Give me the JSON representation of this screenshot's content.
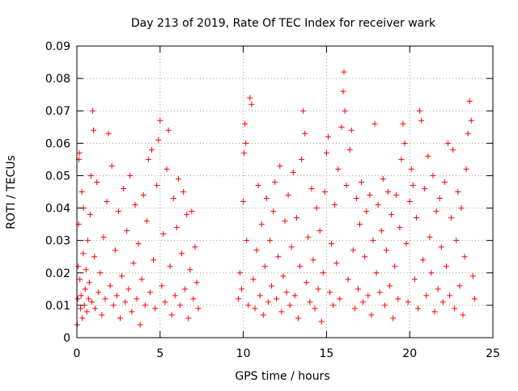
{
  "chart_data": {
    "type": "scatter",
    "title": "Day 213 of 2019, Rate Of TEC Index for receiver wark",
    "xlabel": "GPS time / hours",
    "ylabel": "ROTI / TECUs",
    "xlim": [
      0,
      25
    ],
    "ylim": [
      0,
      0.09
    ],
    "x_ticks": [
      0,
      5,
      10,
      15,
      20,
      25
    ],
    "x_tick_labels": [
      "0",
      "5",
      "10",
      "15",
      "20",
      "25"
    ],
    "y_ticks": [
      0,
      0.01,
      0.02,
      0.03,
      0.04,
      0.05,
      0.06,
      0.07,
      0.08,
      0.09
    ],
    "y_tick_labels": [
      "0",
      "0.01",
      "0.02",
      "0.03",
      "0.04",
      "0.05",
      "0.06",
      "0.07",
      "0.08",
      "0.09"
    ],
    "grid": true,
    "legend": "none",
    "marker": "plus",
    "color": "#ff0000",
    "data_gap": [
      7.4,
      9.6
    ],
    "series": [
      {
        "points": [
          [
            0.02,
            0.004
          ],
          [
            0.05,
            0.012
          ],
          [
            0.08,
            0.022
          ],
          [
            0.1,
            0.035
          ],
          [
            0.12,
            0.055
          ],
          [
            0.15,
            0.057
          ],
          [
            0.18,
            0.018
          ],
          [
            0.22,
            0.009
          ],
          [
            0.25,
            0.013
          ],
          [
            0.3,
            0.045
          ],
          [
            0.33,
            0.006
          ],
          [
            0.38,
            0.026
          ],
          [
            0.4,
            0.04
          ],
          [
            0.45,
            0.01
          ],
          [
            0.5,
            0.015
          ],
          [
            0.55,
            0.021
          ],
          [
            0.6,
            0.008
          ],
          [
            0.65,
            0.03
          ],
          [
            0.7,
            0.012
          ],
          [
            0.75,
            0.017
          ],
          [
            0.8,
            0.038
          ],
          [
            0.85,
            0.05
          ],
          [
            0.9,
            0.011
          ],
          [
            0.95,
            0.07
          ],
          [
            1.0,
            0.064
          ],
          [
            1.05,
            0.025
          ],
          [
            1.1,
            0.009
          ],
          [
            1.2,
            0.048
          ],
          [
            1.3,
            0.014
          ],
          [
            1.4,
            0.02
          ],
          [
            1.5,
            0.007
          ],
          [
            1.6,
            0.031
          ],
          [
            1.7,
            0.012
          ],
          [
            1.8,
            0.042
          ],
          [
            1.9,
            0.063
          ],
          [
            2.0,
            0.016
          ],
          [
            2.1,
            0.053
          ],
          [
            2.2,
            0.01
          ],
          [
            2.3,
            0.027
          ],
          [
            2.4,
            0.013
          ],
          [
            2.5,
            0.039
          ],
          [
            2.6,
            0.006
          ],
          [
            2.7,
            0.019
          ],
          [
            2.8,
            0.046
          ],
          [
            2.9,
            0.011
          ],
          [
            3.0,
            0.033
          ],
          [
            3.1,
            0.015
          ],
          [
            3.2,
            0.05
          ],
          [
            3.3,
            0.008
          ],
          [
            3.4,
            0.023
          ],
          [
            3.5,
            0.041
          ],
          [
            3.6,
            0.012
          ],
          [
            3.7,
            0.029
          ],
          [
            3.8,
            0.004
          ],
          [
            3.9,
            0.018
          ],
          [
            4.0,
            0.044
          ],
          [
            4.1,
            0.01
          ],
          [
            4.2,
            0.036
          ],
          [
            4.3,
            0.055
          ],
          [
            4.4,
            0.014
          ],
          [
            4.5,
            0.058
          ],
          [
            4.6,
            0.024
          ],
          [
            4.7,
            0.009
          ],
          [
            4.8,
            0.047
          ],
          [
            4.9,
            0.061
          ],
          [
            5.0,
            0.067
          ],
          [
            5.1,
            0.016
          ],
          [
            5.2,
            0.032
          ],
          [
            5.3,
            0.011
          ],
          [
            5.4,
            0.052
          ],
          [
            5.5,
            0.064
          ],
          [
            5.6,
            0.022
          ],
          [
            5.7,
            0.007
          ],
          [
            5.8,
            0.043
          ],
          [
            5.9,
            0.013
          ],
          [
            6.0,
            0.034
          ],
          [
            6.1,
            0.049
          ],
          [
            6.2,
            0.01
          ],
          [
            6.3,
            0.026
          ],
          [
            6.4,
            0.045
          ],
          [
            6.5,
            0.015
          ],
          [
            6.6,
            0.038
          ],
          [
            6.7,
            0.006
          ],
          [
            6.8,
            0.021
          ],
          [
            6.9,
            0.039
          ],
          [
            7.0,
            0.012
          ],
          [
            7.1,
            0.028
          ],
          [
            7.2,
            0.017
          ],
          [
            7.3,
            0.009
          ],
          [
            9.7,
            0.012
          ],
          [
            9.8,
            0.02
          ],
          [
            9.9,
            0.015
          ],
          [
            10.0,
            0.042
          ],
          [
            10.05,
            0.057
          ],
          [
            10.1,
            0.066
          ],
          [
            10.15,
            0.06
          ],
          [
            10.2,
            0.03
          ],
          [
            10.3,
            0.01
          ],
          [
            10.4,
            0.074
          ],
          [
            10.5,
            0.072
          ],
          [
            10.6,
            0.018
          ],
          [
            10.7,
            0.009
          ],
          [
            10.8,
            0.027
          ],
          [
            10.9,
            0.047
          ],
          [
            11.0,
            0.013
          ],
          [
            11.1,
            0.035
          ],
          [
            11.2,
            0.007
          ],
          [
            11.3,
            0.022
          ],
          [
            11.4,
            0.043
          ],
          [
            11.5,
            0.011
          ],
          [
            11.6,
            0.03
          ],
          [
            11.7,
            0.016
          ],
          [
            11.8,
            0.039
          ],
          [
            11.9,
            0.048
          ],
          [
            12.0,
            0.012
          ],
          [
            12.1,
            0.025
          ],
          [
            12.2,
            0.053
          ],
          [
            12.3,
            0.008
          ],
          [
            12.4,
            0.019
          ],
          [
            12.5,
            0.036
          ],
          [
            12.6,
            0.014
          ],
          [
            12.7,
            0.044
          ],
          [
            12.8,
            0.01
          ],
          [
            12.9,
            0.028
          ],
          [
            13.0,
            0.051
          ],
          [
            13.1,
            0.013
          ],
          [
            13.2,
            0.037
          ],
          [
            13.3,
            0.006
          ],
          [
            13.4,
            0.022
          ],
          [
            13.5,
            0.055
          ],
          [
            13.6,
            0.07
          ],
          [
            13.7,
            0.063
          ],
          [
            13.8,
            0.017
          ],
          [
            13.9,
            0.031
          ],
          [
            14.0,
            0.011
          ],
          [
            14.1,
            0.046
          ],
          [
            14.2,
            0.024
          ],
          [
            14.3,
            0.009
          ],
          [
            14.4,
            0.04
          ],
          [
            14.5,
            0.015
          ],
          [
            14.6,
            0.033
          ],
          [
            14.7,
            0.005
          ],
          [
            14.8,
            0.02
          ],
          [
            14.9,
            0.045
          ],
          [
            15.0,
            0.057
          ],
          [
            15.1,
            0.062
          ],
          [
            15.2,
            0.014
          ],
          [
            15.3,
            0.029
          ],
          [
            15.4,
            0.01
          ],
          [
            15.5,
            0.041
          ],
          [
            15.6,
            0.023
          ],
          [
            15.7,
            0.052
          ],
          [
            15.8,
            0.012
          ],
          [
            15.9,
            0.065
          ],
          [
            16.0,
            0.076
          ],
          [
            16.05,
            0.082
          ],
          [
            16.1,
            0.07
          ],
          [
            16.2,
            0.047
          ],
          [
            16.3,
            0.018
          ],
          [
            16.4,
            0.058
          ],
          [
            16.5,
            0.064
          ],
          [
            16.6,
            0.027
          ],
          [
            16.7,
            0.009
          ],
          [
            16.8,
            0.043
          ],
          [
            16.9,
            0.015
          ],
          [
            17.0,
            0.035
          ],
          [
            17.1,
            0.048
          ],
          [
            17.2,
            0.011
          ],
          [
            17.3,
            0.025
          ],
          [
            17.4,
            0.039
          ],
          [
            17.5,
            0.013
          ],
          [
            17.6,
            0.044
          ],
          [
            17.7,
            0.007
          ],
          [
            17.8,
            0.03
          ],
          [
            17.9,
            0.066
          ],
          [
            18.0,
            0.02
          ],
          [
            18.1,
            0.041
          ],
          [
            18.2,
            0.014
          ],
          [
            18.3,
            0.033
          ],
          [
            18.4,
            0.049
          ],
          [
            18.5,
            0.01
          ],
          [
            18.6,
            0.027
          ],
          [
            18.7,
            0.045
          ],
          [
            18.8,
            0.016
          ],
          [
            18.9,
            0.038
          ],
          [
            19.0,
            0.006
          ],
          [
            19.1,
            0.022
          ],
          [
            19.2,
            0.044
          ],
          [
            19.3,
            0.012
          ],
          [
            19.4,
            0.034
          ],
          [
            19.5,
            0.055
          ],
          [
            19.6,
            0.066
          ],
          [
            19.7,
            0.06
          ],
          [
            19.8,
            0.029
          ],
          [
            19.9,
            0.011
          ],
          [
            20.0,
            0.042
          ],
          [
            20.1,
            0.052
          ],
          [
            20.2,
            0.047
          ],
          [
            20.3,
            0.018
          ],
          [
            20.4,
            0.037
          ],
          [
            20.5,
            0.009
          ],
          [
            20.6,
            0.07
          ],
          [
            20.7,
            0.067
          ],
          [
            20.8,
            0.024
          ],
          [
            20.9,
            0.046
          ],
          [
            21.0,
            0.013
          ],
          [
            21.1,
            0.056
          ],
          [
            21.2,
            0.031
          ],
          [
            21.3,
            0.02
          ],
          [
            21.4,
            0.05
          ],
          [
            21.5,
            0.008
          ],
          [
            21.6,
            0.039
          ],
          [
            21.7,
            0.015
          ],
          [
            21.8,
            0.043
          ],
          [
            21.9,
            0.028
          ],
          [
            22.0,
            0.011
          ],
          [
            22.1,
            0.048
          ],
          [
            22.2,
            0.022
          ],
          [
            22.3,
            0.06
          ],
          [
            22.4,
            0.013
          ],
          [
            22.5,
            0.037
          ],
          [
            22.6,
            0.058
          ],
          [
            22.7,
            0.009
          ],
          [
            22.8,
            0.03
          ],
          [
            22.9,
            0.045
          ],
          [
            23.0,
            0.016
          ],
          [
            23.1,
            0.04
          ],
          [
            23.2,
            0.007
          ],
          [
            23.3,
            0.025
          ],
          [
            23.4,
            0.052
          ],
          [
            23.5,
            0.063
          ],
          [
            23.6,
            0.073
          ],
          [
            23.7,
            0.067
          ],
          [
            23.8,
            0.019
          ],
          [
            23.9,
            0.012
          ]
        ]
      }
    ]
  }
}
